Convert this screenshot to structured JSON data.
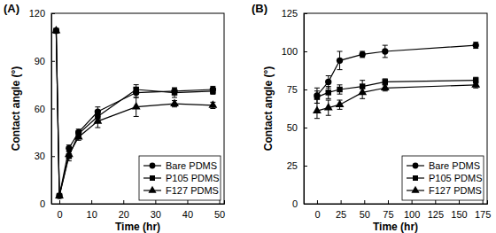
{
  "chart_data": [
    {
      "type": "line",
      "title": "(A)",
      "x_label": "Time (hr)",
      "y_label": "Contact angle (°)",
      "x": [
        -1,
        0,
        3,
        6,
        12,
        24,
        36,
        48
      ],
      "xlim": [
        -2.5,
        51.5
      ],
      "xticks": [
        0,
        10,
        20,
        30,
        40,
        50
      ],
      "ylim": [
        0,
        120
      ],
      "yticks": [
        0,
        30,
        60,
        90,
        120
      ],
      "grid": false,
      "legend": "lower right",
      "series": [
        {
          "name": "Bare PDMS",
          "color": "#000000",
          "marker": "circle",
          "line_style": "solid",
          "values": [
            109,
            5,
            35,
            45,
            58,
            70,
            71,
            72
          ],
          "errors": [
            0,
            1,
            2,
            2,
            3,
            3,
            2,
            2
          ]
        },
        {
          "name": "P105 PDMS",
          "color": "#000000",
          "marker": "square",
          "line_style": "solid",
          "values": [
            109,
            5,
            30,
            44,
            55,
            72,
            70,
            71
          ],
          "errors": [
            0,
            1,
            3,
            2,
            3,
            3,
            3,
            2
          ]
        },
        {
          "name": "F127 PDMS",
          "color": "#000000",
          "marker": "triangle",
          "line_style": "solid",
          "values": [
            109,
            5,
            31,
            42,
            52,
            61,
            63,
            62
          ],
          "errors": [
            0,
            1,
            2,
            2,
            4,
            6,
            2,
            2
          ]
        }
      ]
    },
    {
      "type": "line",
      "title": "(B)",
      "x_label": "Time (hr)",
      "y_label": "Contact angle (°)",
      "x": [
        0,
        12,
        24,
        48,
        72,
        168
      ],
      "xlim": [
        -14,
        180
      ],
      "xticks": [
        0,
        25,
        50,
        75,
        100,
        125,
        150,
        175
      ],
      "ylim": [
        0,
        125
      ],
      "yticks": [
        0,
        25,
        50,
        75,
        100,
        125
      ],
      "grid": false,
      "legend": "lower right",
      "series": [
        {
          "name": "Bare PDMS",
          "color": "#000000",
          "marker": "circle",
          "line_style": "solid",
          "values": [
            71,
            80,
            94,
            98,
            100,
            104
          ],
          "errors": [
            5,
            4,
            6,
            2,
            4,
            2
          ]
        },
        {
          "name": "P105 PDMS",
          "color": "#000000",
          "marker": "square",
          "line_style": "solid",
          "values": [
            70,
            73,
            75,
            77,
            80,
            81
          ],
          "errors": [
            4,
            4,
            3,
            4,
            2,
            2
          ]
        },
        {
          "name": "F127 PDMS",
          "color": "#000000",
          "marker": "triangle",
          "line_style": "solid",
          "values": [
            61,
            63,
            65,
            73,
            76,
            78
          ],
          "errors": [
            5,
            5,
            3,
            4,
            2,
            2
          ]
        }
      ]
    }
  ]
}
